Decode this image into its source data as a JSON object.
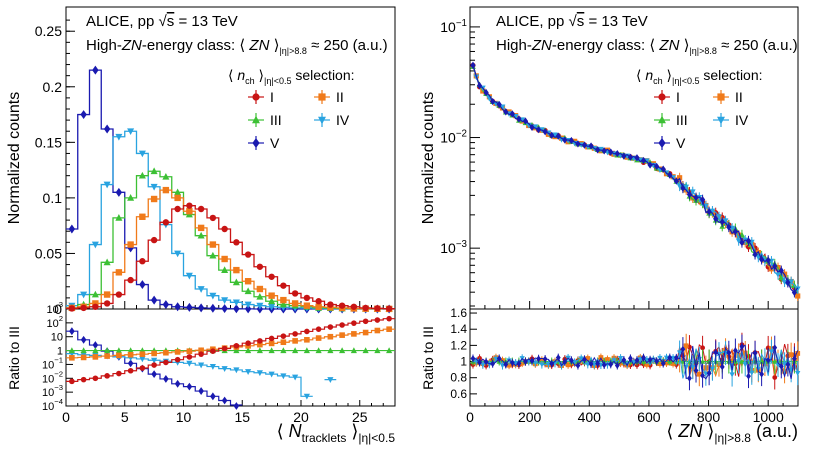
{
  "chart_data": [
    {
      "type": "line",
      "title": "ALICE, pp √s = 13 TeV",
      "panel": "left",
      "header": {
        "line1_pre": "ALICE, pp ",
        "line1_sqrt": "s",
        "line1_post": " = 13 TeV",
        "line2_pre": "High-",
        "line2_zn": "ZN",
        "line2_mid": "-energy class: ⟨ ",
        "line2_zn2": "ZN",
        "line2_sub": " ⟩",
        "line2_subscript": "|η|>8.8",
        "line2_post": " ≈ 250 (a.u.)",
        "selection_pre": "⟨ ",
        "selection_n": "n",
        "selection_ch": "ch",
        "selection_mid": " ⟩",
        "selection_sub": "|η|<0.5",
        "selection_post": " selection:"
      },
      "ylabel": "Normalized counts",
      "ratio_ylabel": "Ratio to III",
      "xlabel_pre": "⟨ ",
      "xlabel_N": "N",
      "xlabel_sub1": "tracklets",
      "xlabel_post": " ⟩",
      "xlabel_sub2": "|η|<0.5",
      "xlim": [
        0,
        28
      ],
      "ylim": [
        0,
        0.27
      ],
      "x_ticks": [
        "0",
        "5",
        "10",
        "15",
        "20",
        "25"
      ],
      "y_ticks": [
        "0",
        "0.05",
        "0.1",
        "0.15",
        "0.2",
        "0.25"
      ],
      "ratio_ylim_log": [
        -4,
        3
      ],
      "ratio_ticks": [
        "10^-4",
        "10^-3",
        "10^-2",
        "10^-1",
        "1",
        "10",
        "10^2",
        "10^3"
      ],
      "x": [
        0,
        1,
        2,
        3,
        4,
        5,
        6,
        7,
        8,
        9,
        10,
        11,
        12,
        13,
        14,
        15,
        16,
        17,
        18,
        19,
        20,
        21,
        22,
        23,
        24,
        25,
        26,
        27
      ],
      "series": [
        {
          "name": "V",
          "color": "#1a1ab0",
          "marker": "diamond",
          "values": [
            0.072,
            0.175,
            0.215,
            0.162,
            0.105,
            0.055,
            0.022,
            0.008,
            0.004,
            0.002,
            0.0015,
            0.001,
            0.0007,
            0.0004,
            0.0002,
            0.0001,
            0,
            0,
            0,
            0,
            0,
            0,
            0,
            0,
            0,
            0,
            0,
            0
          ],
          "ratio": [
            25,
            6,
            2.5,
            0.9,
            0.35,
            0.12,
            0.05,
            0.02,
            0.009,
            0.004,
            0.0025,
            0.0012,
            0.0005,
            0.00025,
            0.0001,
            null,
            null,
            null,
            null,
            null,
            null,
            null,
            null,
            null,
            null,
            null,
            null,
            null
          ]
        },
        {
          "name": "IV",
          "color": "#29a3e0",
          "marker": "triangle-down",
          "values": [
            0.003,
            0.013,
            0.058,
            0.112,
            0.155,
            0.16,
            0.14,
            0.11,
            0.076,
            0.05,
            0.03,
            0.018,
            0.012,
            0.008,
            0.006,
            0.004,
            0.003,
            0.002,
            0.0015,
            0.001,
            0.0008,
            0.0005,
            0.0003,
            0.0002,
            0.0001,
            0,
            0,
            0
          ],
          "ratio": [
            0.6,
            0.5,
            0.45,
            0.4,
            0.35,
            0.3,
            0.25,
            0.2,
            0.17,
            0.14,
            0.12,
            0.09,
            0.07,
            0.05,
            0.04,
            0.03,
            0.025,
            0.02,
            0.015,
            0.012,
            0.0005,
            null,
            0.008,
            null,
            null,
            null,
            null,
            null
          ]
        },
        {
          "name": "III",
          "color": "#3cc034",
          "marker": "triangle-up",
          "values": [
            0.001,
            0.004,
            0.013,
            0.042,
            0.082,
            0.1,
            0.12,
            0.124,
            0.119,
            0.105,
            0.085,
            0.066,
            0.048,
            0.035,
            0.024,
            0.016,
            0.011,
            0.007,
            0.004,
            0.003,
            0.002,
            0.001,
            0.0008,
            0.0005,
            0.0003,
            0.0002,
            0.0001,
            0.0001
          ],
          "ratio": [
            1,
            1,
            1,
            1,
            1,
            1,
            1,
            1,
            1,
            1,
            1,
            1,
            1,
            1,
            1,
            1,
            1,
            1,
            1,
            1,
            1,
            1,
            1,
            1,
            1,
            1,
            1,
            1
          ]
        },
        {
          "name": "II",
          "color": "#f07a1a",
          "marker": "square",
          "values": [
            0.001,
            0.002,
            0.005,
            0.013,
            0.033,
            0.058,
            0.083,
            0.099,
            0.107,
            0.1,
            0.088,
            0.073,
            0.058,
            0.045,
            0.035,
            0.025,
            0.018,
            0.012,
            0.008,
            0.005,
            0.003,
            0.002,
            0.0015,
            0.001,
            0.0005,
            0.0003,
            0.0002,
            0.0001
          ],
          "ratio": [
            0.3,
            0.32,
            0.35,
            0.4,
            0.45,
            0.5,
            0.55,
            0.62,
            0.7,
            0.8,
            0.9,
            1.05,
            1.25,
            1.5,
            1.8,
            2.2,
            2.7,
            3.3,
            4,
            5,
            6,
            8,
            10,
            13,
            16,
            20,
            28,
            35
          ]
        },
        {
          "name": "I",
          "color": "#c81414",
          "marker": "circle",
          "values": [
            0.0005,
            0.001,
            0.002,
            0.005,
            0.013,
            0.026,
            0.043,
            0.062,
            0.078,
            0.09,
            0.093,
            0.09,
            0.082,
            0.072,
            0.06,
            0.049,
            0.038,
            0.029,
            0.021,
            0.014,
            0.01,
            0.007,
            0.004,
            0.003,
            0.002,
            0.001,
            0.0006,
            0.0003
          ],
          "ratio": [
            0.006,
            0.008,
            0.01,
            0.015,
            0.022,
            0.035,
            0.055,
            0.09,
            0.14,
            0.22,
            0.35,
            0.55,
            0.9,
            1.4,
            2.2,
            3.4,
            5,
            7.5,
            11,
            16,
            24,
            35,
            50,
            70,
            95,
            130,
            160,
            200
          ]
        }
      ]
    },
    {
      "type": "line",
      "title": "ALICE, pp √s = 13 TeV",
      "panel": "right",
      "header": {
        "line1_pre": "ALICE, pp ",
        "line1_sqrt": "s",
        "line1_post": " = 13 TeV",
        "line2_pre": "High-",
        "line2_zn": "ZN",
        "line2_mid": "-energy class: ⟨ ",
        "line2_zn2": "ZN",
        "line2_sub": " ⟩",
        "line2_subscript": "|η|>8.8",
        "line2_post": " ≈ 250 (a.u.)",
        "selection_pre": "⟨ ",
        "selection_n": "n",
        "selection_ch": "ch",
        "selection_mid": " ⟩",
        "selection_sub": "|η|<0.5",
        "selection_post": " selection:"
      },
      "ylabel": "Normalized counts",
      "ratio_ylabel": "Ratio to III",
      "xlabel_pre": "⟨ ",
      "xlabel_ZN": "ZN",
      "xlabel_post": " ⟩",
      "xlabel_sub": "|η|>8.8",
      "xlabel_unit": " (a.u.)",
      "xlim": [
        0,
        1100
      ],
      "ylim_log": [
        -3.55,
        -0.82
      ],
      "x_ticks": [
        "0",
        "200",
        "400",
        "600",
        "800",
        "1000"
      ],
      "y_ticks": [
        "10^-3",
        "10^-2",
        "10^-1"
      ],
      "ratio_ylim": [
        0.45,
        1.65
      ],
      "ratio_ticks": [
        "0.6",
        "0.8",
        "1",
        "1.2",
        "1.4",
        "1.6"
      ],
      "curve_x": [
        10,
        30,
        60,
        100,
        150,
        200,
        250,
        300,
        350,
        400,
        450,
        500,
        550,
        600,
        650,
        700,
        750,
        800,
        850,
        900,
        950,
        1000,
        1050,
        1100
      ],
      "curve_y": [
        0.045,
        0.03,
        0.024,
        0.019,
        0.0155,
        0.013,
        0.0113,
        0.01,
        0.0091,
        0.0084,
        0.0077,
        0.0071,
        0.0065,
        0.0059,
        0.005,
        0.004,
        0.003,
        0.0022,
        0.0017,
        0.0013,
        0.001,
        0.00075,
        0.00055,
        0.0004
      ],
      "series": [
        {
          "name": "I",
          "color": "#c81414",
          "marker": "circle"
        },
        {
          "name": "II",
          "color": "#f07a1a",
          "marker": "square"
        },
        {
          "name": "III",
          "color": "#3cc034",
          "marker": "triangle-up"
        },
        {
          "name": "IV",
          "color": "#29a3e0",
          "marker": "triangle-down"
        },
        {
          "name": "V",
          "color": "#1a1ab0",
          "marker": "diamond"
        }
      ]
    }
  ]
}
